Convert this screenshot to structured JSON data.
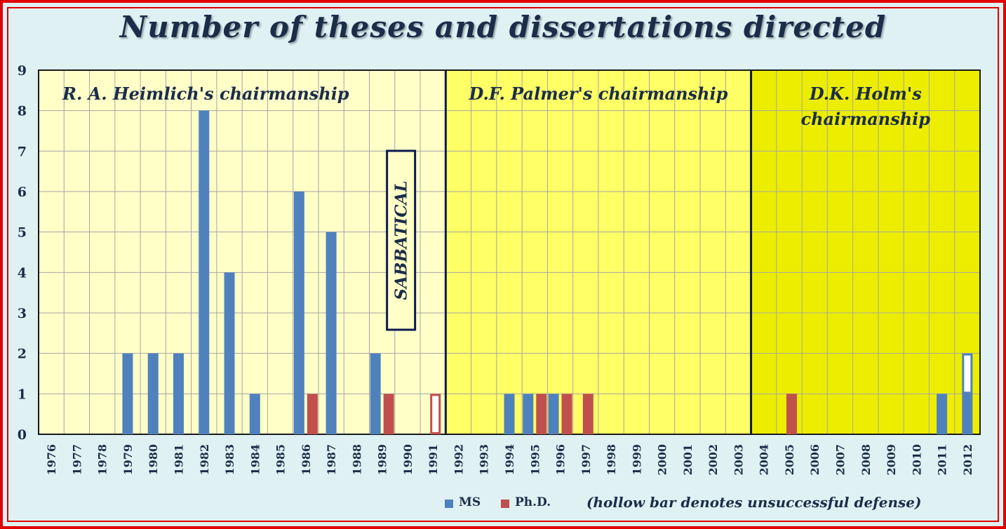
{
  "chart_data": {
    "type": "bar",
    "title": "Number of theses and dissertations directed",
    "xlabel": "",
    "ylabel": "",
    "ylim": [
      0,
      9
    ],
    "yticks": [
      "0",
      "1",
      "2",
      "3",
      "4",
      "5",
      "6",
      "7",
      "8",
      "9"
    ],
    "grid": true,
    "categories": [
      "1976",
      "1977",
      "1978",
      "1979",
      "1980",
      "1981",
      "1982",
      "1983",
      "1984",
      "1985",
      "1986",
      "1987",
      "1988",
      "1989",
      "1990",
      "1991",
      "1992",
      "1993",
      "1994",
      "1995",
      "1996",
      "1997",
      "1998",
      "1999",
      "2000",
      "2001",
      "2002",
      "2003",
      "2004",
      "2005",
      "2006",
      "2007",
      "2008",
      "2009",
      "2010",
      "2011",
      "2012"
    ],
    "series": [
      {
        "name": "MS",
        "color": "#4f81bd",
        "values": [
          0,
          0,
          0,
          2,
          2,
          2,
          8,
          4,
          1,
          0,
          6,
          5,
          0,
          2,
          0,
          0,
          0,
          0,
          1,
          1,
          1,
          0,
          0,
          0,
          0,
          0,
          0,
          0,
          0,
          0,
          0,
          0,
          0,
          0,
          0,
          1,
          2
        ],
        "unsuccessful": [
          0,
          0,
          0,
          0,
          0,
          0,
          0,
          0,
          0,
          0,
          0,
          0,
          0,
          0,
          0,
          0,
          0,
          0,
          0,
          0,
          0,
          0,
          0,
          0,
          0,
          0,
          0,
          0,
          0,
          0,
          0,
          0,
          0,
          0,
          0,
          0,
          1
        ]
      },
      {
        "name": "Ph.D.",
        "color": "#c0504d",
        "values": [
          0,
          0,
          0,
          0,
          0,
          0,
          0,
          0,
          0,
          0,
          1,
          0,
          0,
          1,
          0,
          0,
          0,
          0,
          0,
          1,
          1,
          1,
          0,
          0,
          0,
          0,
          0,
          0,
          0,
          1,
          0,
          0,
          0,
          0,
          0,
          0,
          0
        ],
        "unsuccessful": [
          0,
          0,
          0,
          0,
          0,
          0,
          0,
          0,
          0,
          0,
          0,
          0,
          0,
          0,
          0,
          1,
          0,
          0,
          0,
          0,
          0,
          0,
          0,
          0,
          0,
          0,
          0,
          0,
          0,
          0,
          0,
          0,
          0,
          0,
          0,
          0,
          0
        ]
      }
    ],
    "legend_placement": "bottom-right",
    "legend_note": "(hollow bar denotes unsuccessful defense)",
    "regions": [
      {
        "label_lines": [
          "R. A. Heimlich's chairmanship"
        ],
        "from": "1976",
        "to": "1991",
        "color": "#ffffc8"
      },
      {
        "label_lines": [
          "D.F. Palmer's chairmanship"
        ],
        "from": "1992",
        "to": "2003",
        "color": "#ffff66"
      },
      {
        "label_lines": [
          "D.K. Holm's",
          "chairmanship"
        ],
        "from": "2004",
        "to": "2012",
        "color": "#eded00"
      }
    ],
    "annotations": [
      {
        "text": "SABBATICAL",
        "x_category": "1989",
        "orientation": "vertical"
      }
    ],
    "colors": {
      "background": "#dff1f3",
      "frame": "#e00000",
      "text": "#1b2d49",
      "divider": "#0b1a50"
    }
  }
}
